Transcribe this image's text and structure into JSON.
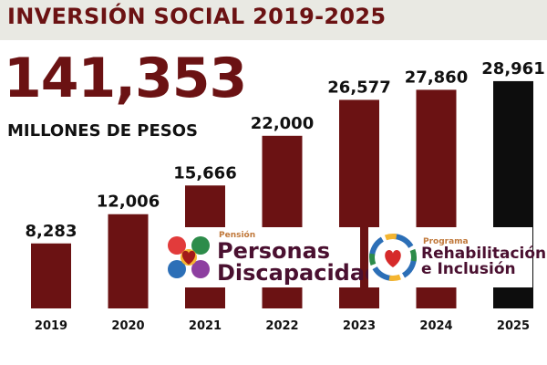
{
  "header": {
    "title": "INVERSIÓN SOCIAL 2019-2025",
    "total": "141,353",
    "unit_label": "MILLONES DE PESOS"
  },
  "colors": {
    "bar": "#6b1213",
    "bar_highlight": "#0d0d0d",
    "title": "#6b1213",
    "band": "#e9e9e3"
  },
  "logos": [
    {
      "kicker": "Pensión",
      "name_line1": "Personas",
      "name_line2": "Discapacidad",
      "icon": "heart-hands-icon"
    },
    {
      "kicker": "Programa",
      "name_line1": "Rehabilitación",
      "name_line2": "e Inclusión",
      "icon": "heart-people-circle-icon"
    }
  ],
  "chart_data": {
    "type": "bar",
    "categories": [
      "2019",
      "2020",
      "2021",
      "2022",
      "2023",
      "2024",
      "2025"
    ],
    "values": [
      8283,
      12006,
      15666,
      22000,
      26577,
      27860,
      28961
    ],
    "value_labels": [
      "8,283",
      "12,006",
      "15,666",
      "22,000",
      "26,577",
      "27,860",
      "28,961"
    ],
    "highlight_category": "2025",
    "ylim": [
      0,
      30000
    ],
    "grid": false,
    "title": "INVERSIÓN SOCIAL 2019-2025",
    "xlabel": "",
    "ylabel": ""
  }
}
